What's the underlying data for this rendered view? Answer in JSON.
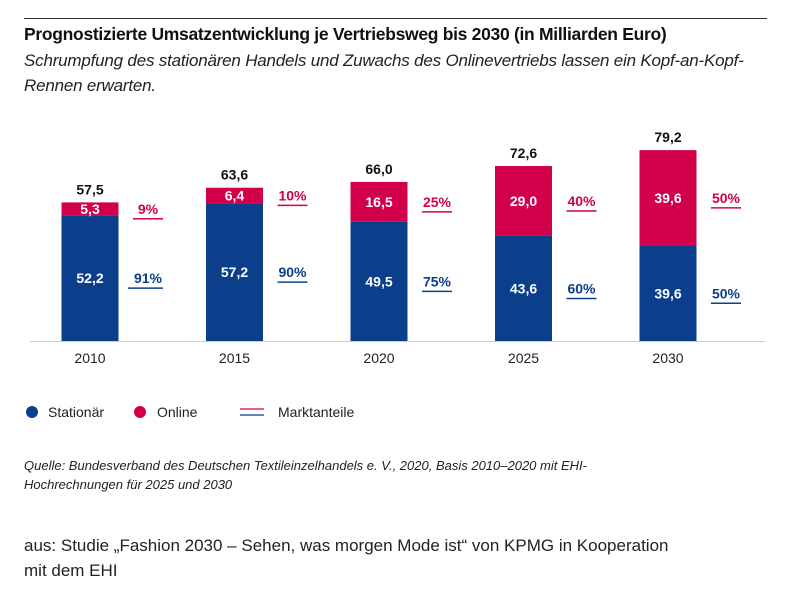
{
  "title": "Prognostizierte Umsatzentwicklung je Vertriebsweg bis 2030 (in Milliarden Euro)",
  "subtitle": "Schrumpfung des stationären Handels und Zuwachs des Onlinevertriebs lassen ein Kopf-an-Kopf-Rennen erwarten.",
  "source": "Quelle: Bundesverband des Deutschen Textileinzelhandels e. V., 2020, Basis 2010–2020 mit EHI-Hochrechnungen für 2025 und 2030",
  "footer": "aus: Studie „Fashion 2030 – Sehen, was morgen Mode ist“ von KPMG in Kooperation mit dem EHI",
  "colors": {
    "stationaer": "#0b3f8c",
    "online": "#d2004b"
  },
  "chart_data": {
    "type": "bar",
    "stacked": true,
    "categories": [
      "2010",
      "2015",
      "2020",
      "2025",
      "2030"
    ],
    "series": [
      {
        "name": "Stationär",
        "values": [
          52.2,
          57.2,
          49.5,
          43.6,
          39.6
        ],
        "labels": [
          "52,2",
          "57,2",
          "49,5",
          "43,6",
          "39,6"
        ],
        "shares": [
          "91%",
          "90%",
          "75%",
          "60%",
          "50%"
        ]
      },
      {
        "name": "Online",
        "values": [
          5.3,
          6.4,
          16.5,
          29.0,
          39.6
        ],
        "labels": [
          "5,3",
          "6,4",
          "16,5",
          "29,0",
          "39,6"
        ],
        "shares": [
          "9%",
          "10%",
          "25%",
          "40%",
          "50%"
        ]
      }
    ],
    "totals": [
      57.5,
      63.6,
      66.0,
      72.6,
      79.2
    ],
    "total_labels": [
      "57,5",
      "63,6",
      "66,0",
      "72,6",
      "79,2"
    ],
    "legend": [
      "Stationär",
      "Online",
      "Marktanteile"
    ],
    "legend_position": "bottom-left",
    "grid": false,
    "ylim": [
      0,
      80
    ]
  }
}
